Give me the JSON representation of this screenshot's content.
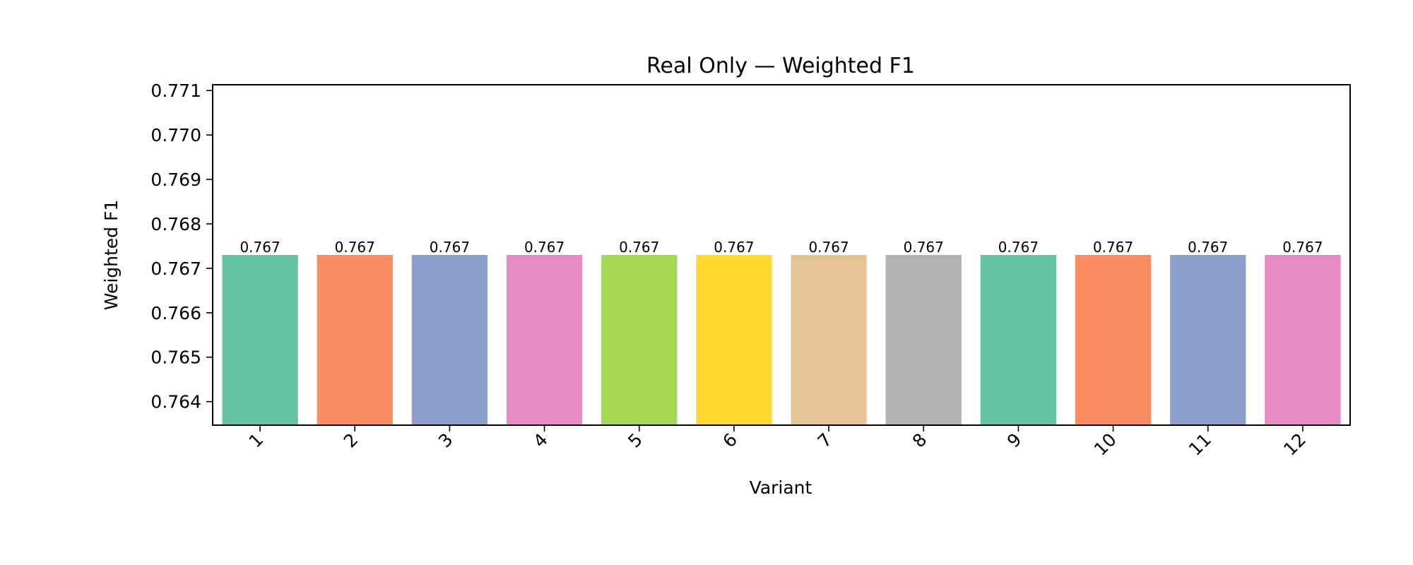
{
  "chart_data": {
    "type": "bar",
    "title": "Real Only — Weighted F1",
    "xlabel": "Variant",
    "ylabel": "Weighted F1",
    "categories": [
      "1",
      "2",
      "3",
      "4",
      "5",
      "6",
      "7",
      "8",
      "9",
      "10",
      "11",
      "12"
    ],
    "values": [
      0.7673,
      0.7673,
      0.7673,
      0.7673,
      0.7673,
      0.7673,
      0.7673,
      0.7673,
      0.7673,
      0.7673,
      0.7673,
      0.7673
    ],
    "data_labels": [
      "0.767",
      "0.767",
      "0.767",
      "0.767",
      "0.767",
      "0.767",
      "0.767",
      "0.767",
      "0.767",
      "0.767",
      "0.767",
      "0.767"
    ],
    "ylim": [
      0.76347,
      0.77113
    ],
    "yticks": [
      0.764,
      0.765,
      0.766,
      0.767,
      0.768,
      0.769,
      0.77,
      0.771
    ],
    "ytick_labels": [
      "0.764",
      "0.765",
      "0.766",
      "0.767",
      "0.768",
      "0.769",
      "0.770",
      "0.771"
    ],
    "colors": [
      "#66c2a5",
      "#fc8d62",
      "#8da0cb",
      "#e78ac3",
      "#a6d854",
      "#ffd92f",
      "#e5c494",
      "#b3b3b3",
      "#66c2a5",
      "#fc8d62",
      "#8da0cb",
      "#e78ac3"
    ],
    "grid": false,
    "legend": "none"
  }
}
